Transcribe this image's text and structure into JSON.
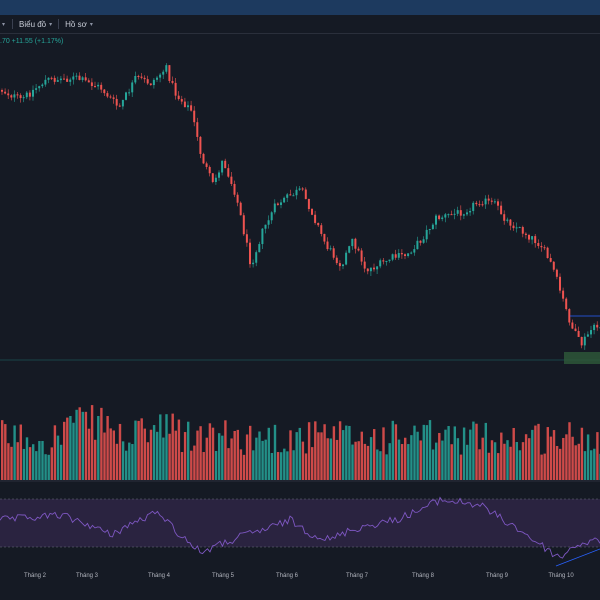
{
  "tabs": [
    {
      "label": "",
      "has_chevron": true
    },
    {
      "label": "Biểu đồ",
      "has_chevron": true
    },
    {
      "label": "Hồ sơ",
      "has_chevron": true
    }
  ],
  "quote": {
    "text": ".70  +11.55 (+1.17%)"
  },
  "colors": {
    "up": "#26a69a",
    "down": "#ef5350",
    "background": "#151a24",
    "rsi_line": "#7e57c2",
    "rsi_band": "#2a2340",
    "trend_line": "#2962ff",
    "support_line": "#26a69a"
  },
  "chart_data": {
    "type": "candlestick",
    "x_tick_labels": [
      "Tháng 2",
      "Tháng 3",
      "Tháng 4",
      "Tháng 5",
      "Tháng 6",
      "Tháng 7",
      "Tháng 8",
      "Tháng 9",
      "Tháng 10"
    ],
    "price_path": [
      [
        "Tháng 1 (start)",
        0.86
      ],
      [
        "Tháng 2",
        0.92
      ],
      [
        "Tháng 2.5",
        0.95
      ],
      [
        "Tháng 3",
        0.96
      ],
      [
        "Tháng 3.5",
        0.88
      ],
      [
        "Tháng 4",
        1.0
      ],
      [
        "Tháng 4.3",
        0.72
      ],
      [
        "Tháng 4.7",
        0.45
      ],
      [
        "Tháng 5",
        0.05
      ],
      [
        "Tháng 5.6",
        0.5
      ],
      [
        "Tháng 6",
        0.6
      ],
      [
        "Tháng 6.5",
        0.25
      ],
      [
        "Tháng 7",
        0.0
      ],
      [
        "Tháng 7.6",
        0.2
      ],
      [
        "Tháng 8",
        0.45
      ],
      [
        "Tháng 8.6",
        0.58
      ],
      [
        "Tháng 9",
        0.5
      ],
      [
        "Tháng 9.6",
        0.25
      ],
      [
        "Tháng 10",
        -0.55
      ],
      [
        "Tháng 10.5",
        -0.4
      ]
    ],
    "volume_relative": "varying bars, tallest around Tháng 3",
    "indicator": {
      "name": "RSI",
      "bands": [
        "upper",
        "lower"
      ],
      "trend_line": "rising near Tháng 10"
    },
    "grid": false
  }
}
